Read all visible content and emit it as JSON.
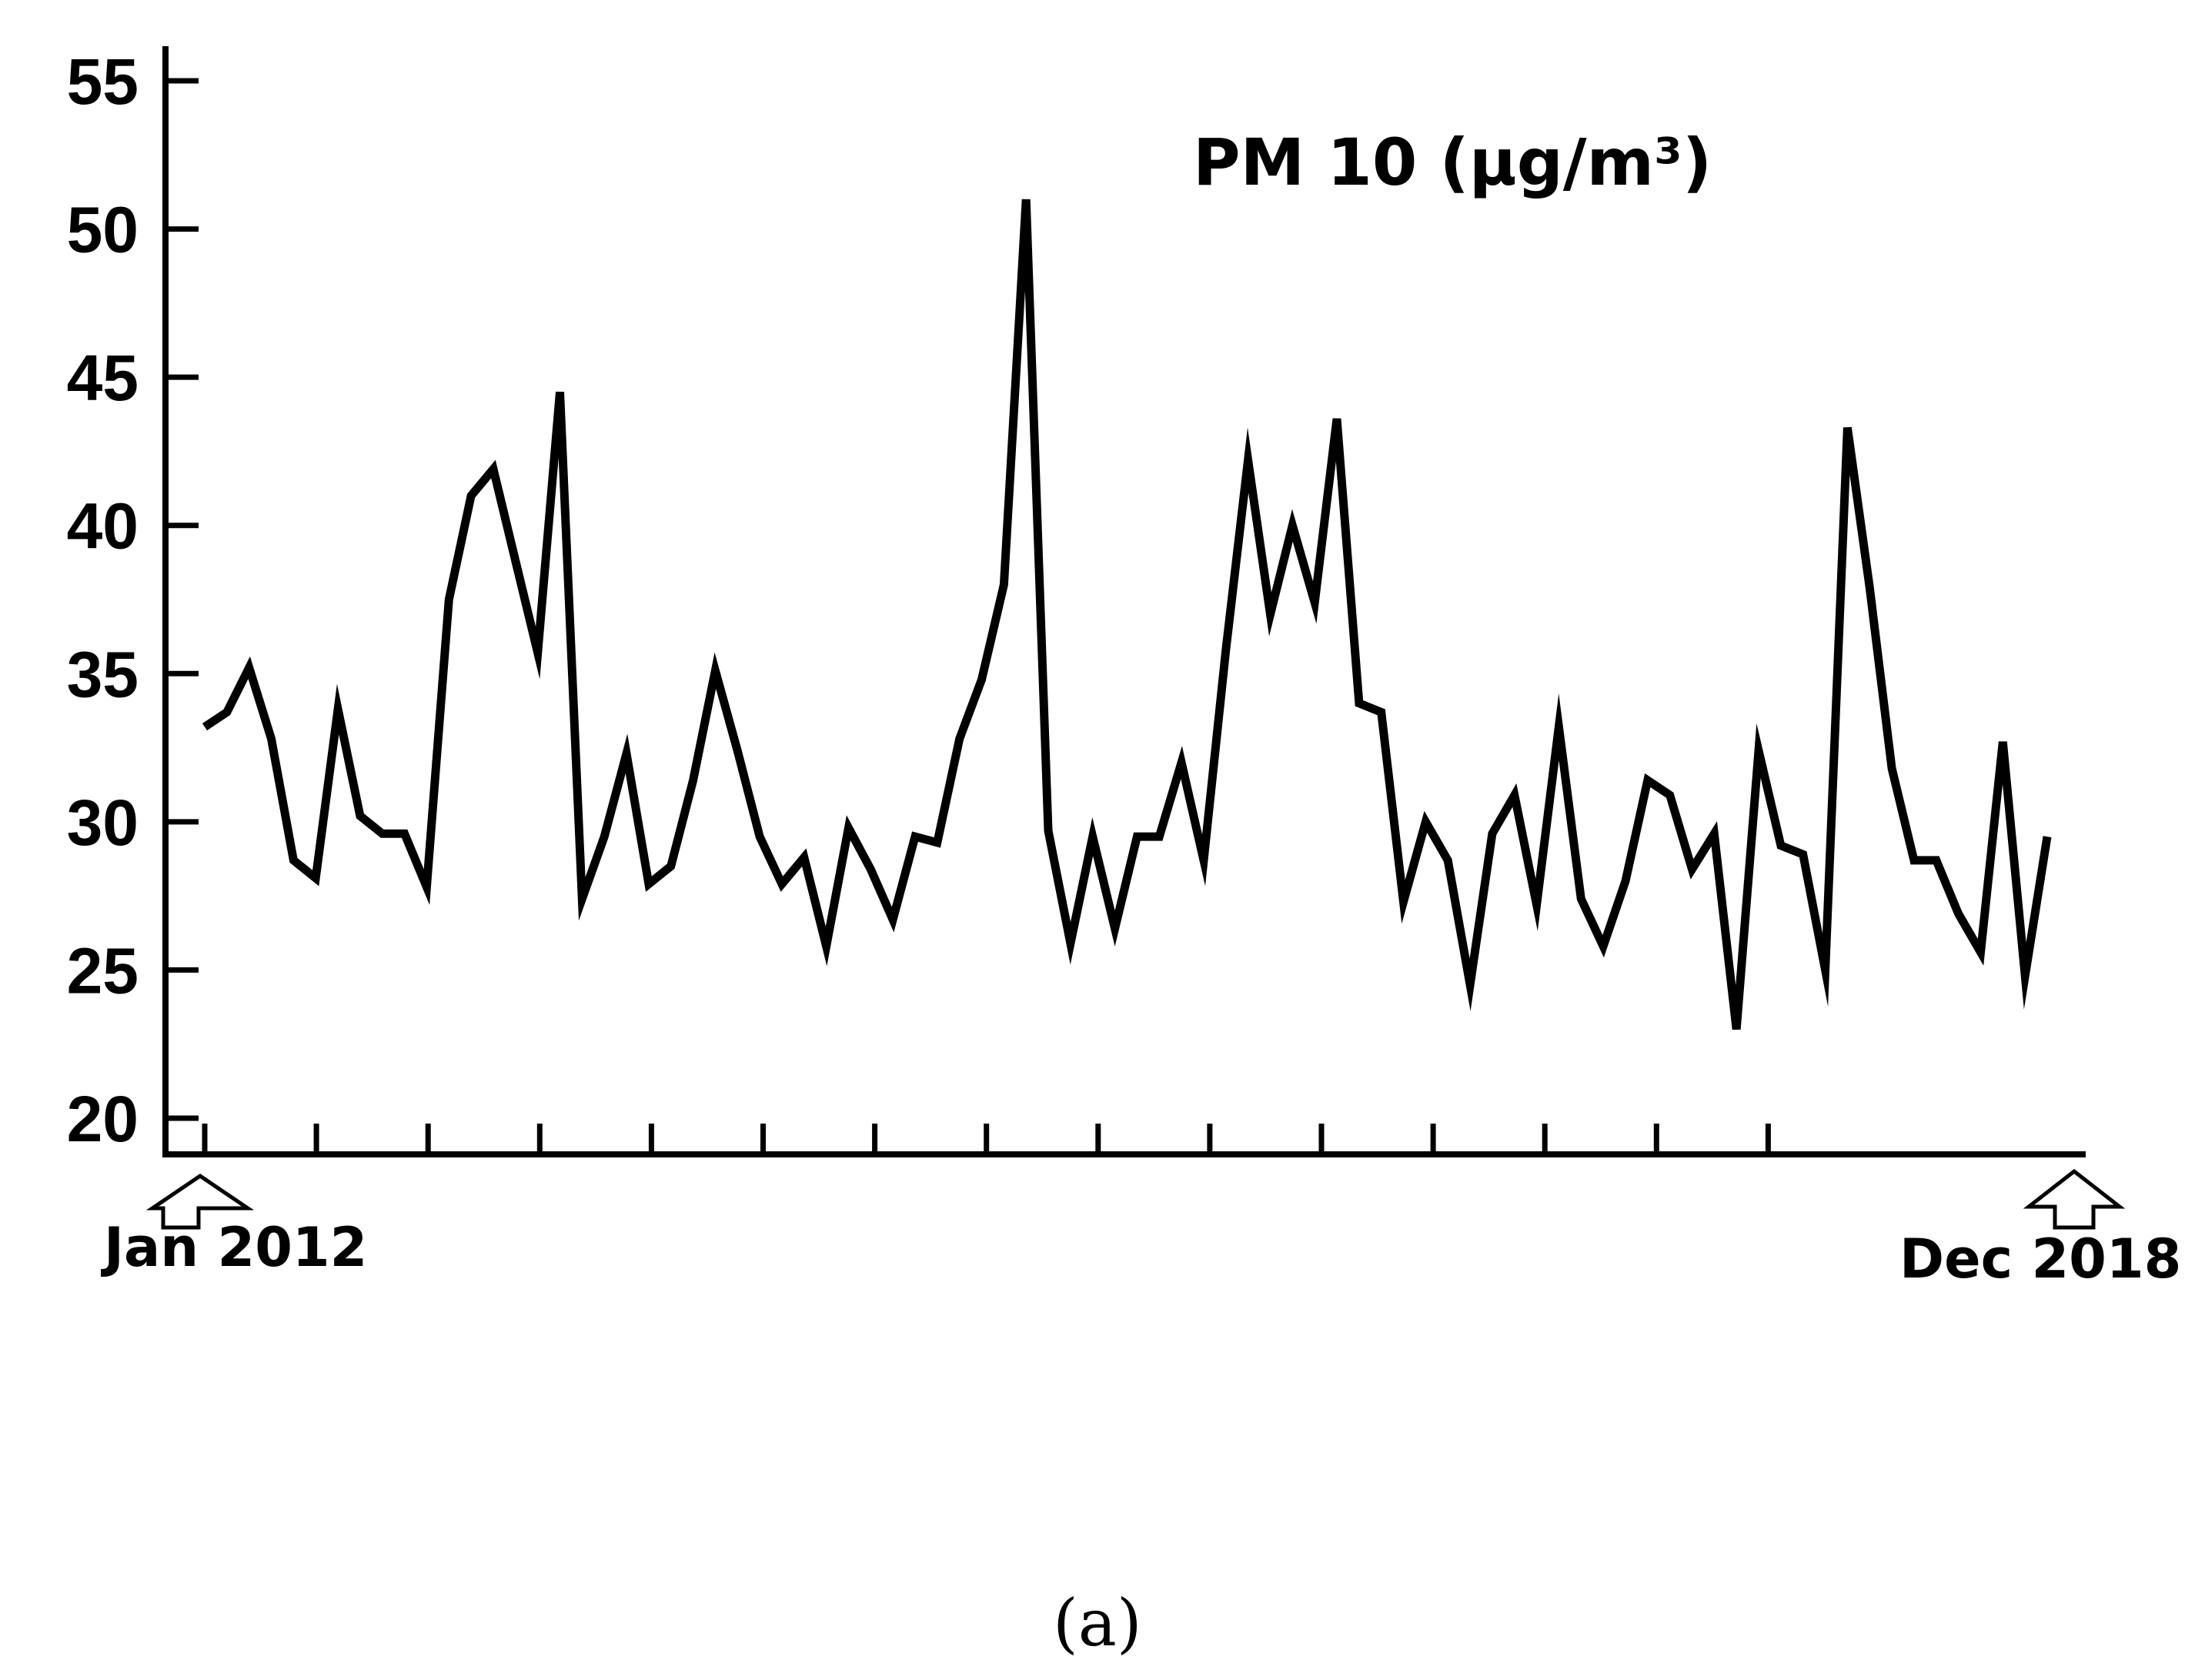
{
  "chart_data": {
    "type": "line",
    "title": "PM 10 (μg/m³)",
    "xlabel": "",
    "ylabel": "",
    "ylim": [
      20,
      55
    ],
    "y_ticks": [
      20,
      25,
      30,
      35,
      40,
      45,
      50,
      55
    ],
    "x_start_label": "Jan 2012",
    "x_end_label": "Dec 2018",
    "grid": false,
    "line_color": "#000000",
    "values": [
      33.2,
      33.7,
      35.2,
      32.8,
      28.7,
      28.1,
      33.8,
      30.2,
      29.6,
      29.6,
      27.8,
      37.5,
      41.0,
      41.9,
      38.8,
      35.7,
      44.5,
      27.4,
      29.5,
      32.3,
      27.9,
      28.5,
      31.4,
      35.1,
      32.4,
      29.5,
      27.9,
      28.8,
      25.8,
      29.8,
      28.4,
      26.7,
      29.5,
      29.3,
      32.8,
      34.8,
      38.0,
      51.0,
      29.7,
      25.9,
      29.5,
      26.4,
      29.5,
      29.5,
      32.0,
      28.7,
      35.8,
      42.2,
      37.0,
      40.0,
      37.4,
      43.6,
      34.0,
      33.7,
      27.3,
      30.0,
      28.7,
      24.5,
      29.6,
      30.9,
      27.2,
      33.2,
      27.4,
      25.8,
      28.0,
      31.4,
      30.9,
      28.4,
      29.6,
      23.0,
      32.4,
      29.2,
      28.9,
      25.0,
      43.3,
      37.9,
      31.8,
      28.7,
      28.7,
      26.9,
      25.6,
      32.7,
      24.8,
      29.5
    ]
  },
  "panel_label": "(a)",
  "y_tick_labels": [
    "20",
    "25",
    "30",
    "35",
    "40",
    "45",
    "50",
    "55"
  ]
}
